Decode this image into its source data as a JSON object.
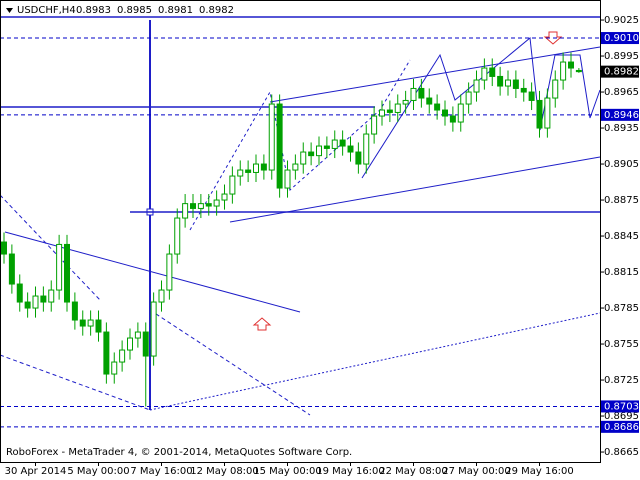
{
  "chart_data": {
    "type": "candlestick",
    "symbol": "USDCHF,H4",
    "watermark": "RoboForex - MetaTrader 4, © 2001-2014, MetaQuotes Software Corp.",
    "color": "#00a000",
    "categories": [
      null,
      null,
      null,
      null,
      "30 Apr 2014",
      null,
      null,
      null,
      null,
      null,
      null,
      null,
      "5 May 00:00",
      null,
      null,
      null,
      null,
      null,
      null,
      null,
      "7 May 16:00",
      null,
      null,
      null,
      null,
      null,
      null,
      null,
      "12 May 08:00",
      null,
      null,
      null,
      null,
      null,
      null,
      null,
      "15 May 00:00",
      null,
      null,
      null,
      null,
      null,
      null,
      null,
      "19 May 16:00",
      null,
      null,
      null,
      null,
      null,
      null,
      null,
      "22 May 08:00",
      null,
      null,
      null,
      null,
      null,
      null,
      null,
      "27 May 00:00",
      null,
      null,
      null,
      null,
      null,
      null,
      null,
      "29 May 16:00",
      null,
      null,
      null,
      null,
      null
    ],
    "open": [
      0.884,
      0.883,
      0.8805,
      0.879,
      0.8785,
      0.8795,
      0.879,
      0.88,
      0.8838,
      0.879,
      0.8775,
      0.877,
      0.8775,
      0.8765,
      0.873,
      0.874,
      0.875,
      0.876,
      0.8765,
      0.8745,
      0.879,
      0.88,
      0.883,
      0.886,
      0.8872,
      0.8868,
      0.8872,
      0.887,
      0.8875,
      0.888,
      0.8895,
      0.89,
      0.8898,
      0.8905,
      0.89,
      0.8955,
      0.8885,
      0.89,
      0.8905,
      0.8915,
      0.8912,
      0.892,
      0.8918,
      0.8925,
      0.892,
      0.8915,
      0.8905,
      0.893,
      0.8945,
      0.895,
      0.8948,
      0.8955,
      0.8958,
      0.8968,
      0.896,
      0.8955,
      0.895,
      0.8945,
      0.894,
      0.8955,
      0.8965,
      0.8975,
      0.8985,
      0.8978,
      0.897,
      0.8975,
      0.8968,
      0.8965,
      0.8958,
      0.8935,
      0.896,
      0.8975,
      0.899,
      0.8983
    ],
    "high": [
      0.8848,
      0.8838,
      0.8813,
      0.8798,
      0.8803,
      0.8803,
      0.8808,
      0.8846,
      0.8846,
      0.8798,
      0.8783,
      0.8783,
      0.8783,
      0.8773,
      0.8748,
      0.8758,
      0.8768,
      0.8773,
      0.8773,
      0.8798,
      0.8808,
      0.8838,
      0.8868,
      0.888,
      0.888,
      0.888,
      0.888,
      0.8883,
      0.8888,
      0.8903,
      0.8908,
      0.8908,
      0.8913,
      0.8913,
      0.8963,
      0.8963,
      0.8908,
      0.8913,
      0.8923,
      0.8923,
      0.8928,
      0.8928,
      0.8933,
      0.8933,
      0.8928,
      0.8923,
      0.8938,
      0.8953,
      0.8958,
      0.8958,
      0.8963,
      0.8966,
      0.8976,
      0.8976,
      0.8968,
      0.8963,
      0.8958,
      0.8953,
      0.8963,
      0.8973,
      0.8983,
      0.8993,
      0.8993,
      0.8986,
      0.8983,
      0.8983,
      0.8976,
      0.8973,
      0.8966,
      0.8968,
      0.8983,
      0.8998,
      0.8998,
      0.8985
    ],
    "low": [
      0.8822,
      0.8797,
      0.8782,
      0.8777,
      0.8777,
      0.8782,
      0.8782,
      0.8792,
      0.8782,
      0.8767,
      0.8762,
      0.8762,
      0.8757,
      0.8722,
      0.8722,
      0.8732,
      0.8742,
      0.8752,
      0.8703,
      0.8737,
      0.8782,
      0.8792,
      0.8822,
      0.8852,
      0.886,
      0.886,
      0.8862,
      0.8862,
      0.8867,
      0.8872,
      0.8887,
      0.889,
      0.889,
      0.8892,
      0.8892,
      0.8877,
      0.8877,
      0.8892,
      0.8897,
      0.8904,
      0.8904,
      0.891,
      0.891,
      0.8912,
      0.8907,
      0.8897,
      0.8897,
      0.8922,
      0.8937,
      0.894,
      0.894,
      0.8947,
      0.895,
      0.8952,
      0.8947,
      0.8942,
      0.8937,
      0.8932,
      0.8932,
      0.8947,
      0.8957,
      0.8967,
      0.897,
      0.8962,
      0.8962,
      0.896,
      0.8957,
      0.895,
      0.8927,
      0.8927,
      0.8952,
      0.8967,
      0.8977,
      0.8981
    ],
    "close": [
      0.883,
      0.8805,
      0.879,
      0.8785,
      0.8795,
      0.879,
      0.88,
      0.8838,
      0.879,
      0.8775,
      0.877,
      0.8775,
      0.8765,
      0.873,
      0.874,
      0.875,
      0.876,
      0.8765,
      0.8745,
      0.879,
      0.88,
      0.883,
      0.886,
      0.8872,
      0.8868,
      0.8872,
      0.887,
      0.8875,
      0.888,
      0.8895,
      0.89,
      0.8898,
      0.8905,
      0.89,
      0.8955,
      0.8885,
      0.89,
      0.8905,
      0.8915,
      0.8912,
      0.892,
      0.8918,
      0.8925,
      0.892,
      0.8915,
      0.8905,
      0.893,
      0.8945,
      0.895,
      0.8948,
      0.8955,
      0.8958,
      0.8968,
      0.896,
      0.8955,
      0.895,
      0.8945,
      0.894,
      0.8955,
      0.8965,
      0.8975,
      0.8985,
      0.8978,
      0.897,
      0.8975,
      0.8968,
      0.8965,
      0.8958,
      0.8935,
      0.896,
      0.8975,
      0.899,
      0.8985,
      0.8982
    ],
    "ylim": [
      0.86567,
      0.90417
    ],
    "yticks": [
      0.9025,
      0.8995,
      0.8965,
      0.8935,
      0.8905,
      0.8875,
      0.8845,
      0.8815,
      0.8785,
      0.8755,
      0.8725,
      0.8695,
      0.8665
    ],
    "levels": [
      {
        "value": 0.901,
        "label": "0.9010"
      },
      0.8946,
      0.8703,
      0.8686
    ],
    "level_color": "#0000c8",
    "current_price": 0.8982
  }
}
